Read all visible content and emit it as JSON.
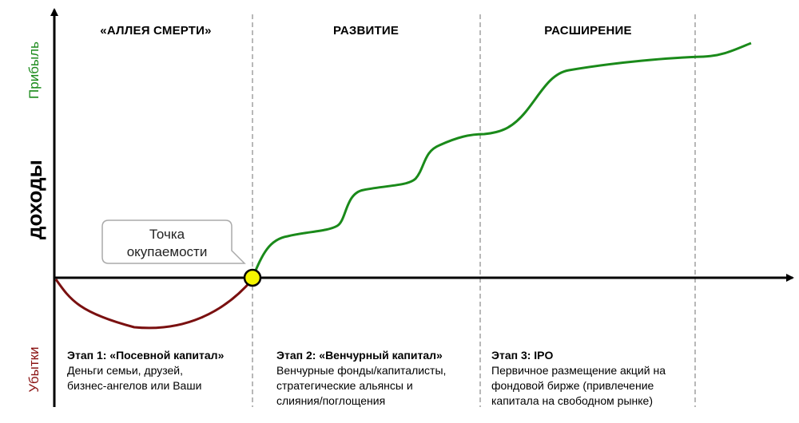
{
  "axis": {
    "y_title": "доходы",
    "profit_label": "Прибыль",
    "loss_label": "Убытки",
    "profit_color": "#1a8a1a",
    "loss_color": "#8b1414"
  },
  "phases": [
    {
      "title": "«АЛЛЕЯ СМЕРТИ»"
    },
    {
      "title": "РАЗВИТИЕ"
    },
    {
      "title": "РАСШИРЕНИЕ"
    }
  ],
  "stages": [
    {
      "title": "Этап 1: «Посевной капитал»",
      "lines": [
        "Деньги семьи, друзей,",
        "бизнес-ангелов или Ваши"
      ]
    },
    {
      "title": "Этап 2: «Венчурный капитал»",
      "lines": [
        "Венчурные фонды/капиталисты,",
        "стратегические альянсы и",
        "слияния/поглощения"
      ]
    },
    {
      "title": "Этап 3: IPO",
      "lines": [
        "Первичное размещение акций на",
        "фондовой бирже (привлечение",
        "капитала на свободном рынке)"
      ]
    }
  ],
  "callout": {
    "line1": "Точка",
    "line2": "окупаемости"
  },
  "colors": {
    "growth_curve": "#1a8a1a",
    "loss_curve": "#7a1010",
    "breakeven_fill": "#f5f500",
    "divider": "#888888"
  }
}
